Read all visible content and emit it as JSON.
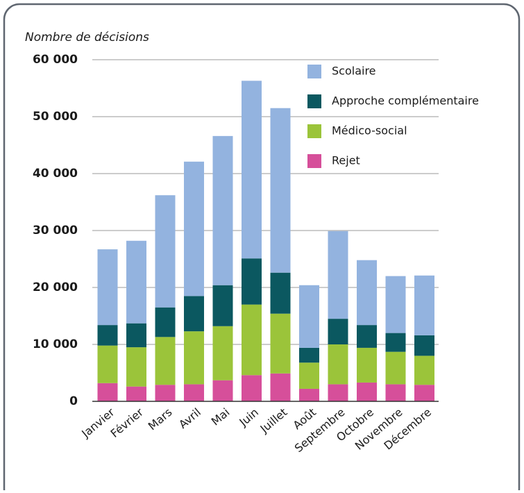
{
  "chart_data": {
    "type": "stacked_bar",
    "y_label": "Nombre de décisions",
    "categories": [
      "Janvier",
      "Février",
      "Mars",
      "Avril",
      "Mai",
      "Juin",
      "Juillet",
      "Août",
      "Septembre",
      "Octobre",
      "Novembre",
      "Décembre"
    ],
    "series": [
      {
        "name": "Rejet",
        "color": "#d64f9a",
        "values": [
          3200,
          2600,
          2900,
          3000,
          3700,
          4600,
          4900,
          2200,
          3000,
          3300,
          3000,
          2900
        ]
      },
      {
        "name": "Médico-social",
        "color": "#9bc43a",
        "values": [
          6600,
          6900,
          8400,
          9300,
          9500,
          12400,
          10500,
          4600,
          7000,
          6100,
          5700,
          5100
        ]
      },
      {
        "name": "Approche complémentaire",
        "color": "#0b5860",
        "values": [
          3600,
          4200,
          5200,
          6200,
          7200,
          8100,
          7200,
          2600,
          4500,
          4000,
          3300,
          3600
        ]
      },
      {
        "name": "Scolaire",
        "color": "#93b3df",
        "values": [
          13300,
          14500,
          19700,
          23600,
          26200,
          31200,
          28900,
          11000,
          15400,
          11400,
          10000,
          10500
        ]
      }
    ],
    "ylim": [
      0,
      60000
    ],
    "yticks": [
      {
        "value": 0,
        "label": "0"
      },
      {
        "value": 10000,
        "label": "10 000"
      },
      {
        "value": 20000,
        "label": "20 000"
      },
      {
        "value": 30000,
        "label": "30 000"
      },
      {
        "value": 40000,
        "label": "40 000"
      },
      {
        "value": 50000,
        "label": "50 000"
      },
      {
        "value": 60000,
        "label": "60 000"
      }
    ],
    "grid": true
  }
}
